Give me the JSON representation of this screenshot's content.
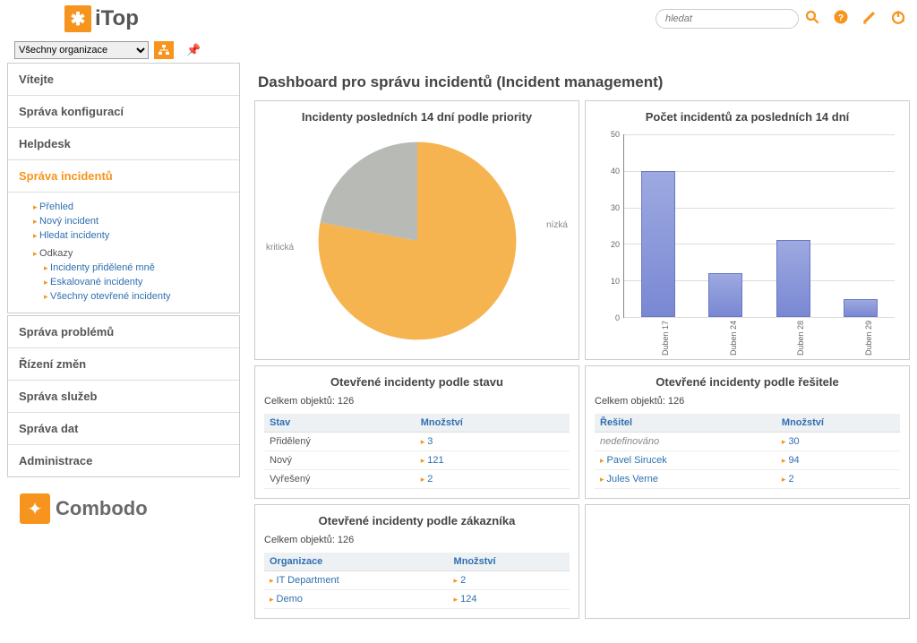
{
  "app": {
    "logo_text": "iTop",
    "footer_logo": "Combodo"
  },
  "header": {
    "search_placeholder": "hledat",
    "org_select": "Všechny organizace"
  },
  "menu": {
    "items": [
      {
        "label": "Vítejte"
      },
      {
        "label": "Správa konfigurací"
      },
      {
        "label": "Helpdesk"
      },
      {
        "label": "Správa incidentů",
        "active": true
      },
      {
        "label": "Správa problémů"
      },
      {
        "label": "Řízení změn"
      },
      {
        "label": "Správa služeb"
      },
      {
        "label": "Správa dat"
      },
      {
        "label": "Administrace"
      }
    ],
    "sub": {
      "group1": [
        "Přehled",
        "Nový incident",
        "Hledat incidenty"
      ],
      "head": "Odkazy",
      "group2": [
        "Incidenty přidělené mně",
        "Eskalované incidenty",
        "Všechny otevřené incidenty"
      ]
    }
  },
  "page": {
    "title": "Dashboard pro správu incidentů (Incident management)"
  },
  "pie": {
    "title": "Incidenty posledních 14 dní podle priority",
    "slices": [
      {
        "label": "kritická",
        "value": 78,
        "color": "#f5b44f"
      },
      {
        "label": "nízká",
        "value": 22,
        "color": "#b8bbb5"
      }
    ],
    "label_color": "#999999",
    "label_fontsize": 10
  },
  "bar": {
    "title": "Počet incidentů za posledních 14 dní",
    "ylim": [
      0,
      50
    ],
    "ytick_step": 10,
    "categories": [
      "Duben 17",
      "Duben 24",
      "Duben 28",
      "Duben 29"
    ],
    "values": [
      40,
      12,
      21,
      5
    ],
    "bar_color_top": "#9da9e0",
    "bar_color_bottom": "#7a88d4",
    "bar_border": "#6a78c4",
    "grid_color": "#dddddd",
    "axis_color": "#888888"
  },
  "status_table": {
    "title": "Otevřené incidenty podle stavu",
    "subtitle": "Celkem objektů: 126",
    "cols": [
      "Stav",
      "Množství"
    ],
    "rows": [
      {
        "label": "Přidělený",
        "val": "3"
      },
      {
        "label": "Nový",
        "val": "121"
      },
      {
        "label": "Vyřešený",
        "val": "2"
      }
    ]
  },
  "agent_table": {
    "title": "Otevřené incidenty podle řešitele",
    "subtitle": "Celkem objektů: 126",
    "cols": [
      "Řešitel",
      "Množství"
    ],
    "rows": [
      {
        "label": "nedefinováno",
        "val": "30",
        "undef": true
      },
      {
        "label": "Pavel Sirucek",
        "val": "94"
      },
      {
        "label": "Jules Verne",
        "val": "2"
      }
    ]
  },
  "customer_table": {
    "title": "Otevřené incidenty podle zákazníka",
    "subtitle": "Celkem objektů: 126",
    "cols": [
      "Organizace",
      "Množství"
    ],
    "rows": [
      {
        "label": "IT Department",
        "val": "2"
      },
      {
        "label": "Demo",
        "val": "124"
      }
    ]
  },
  "colors": {
    "accent": "#f7941d",
    "link": "#2f6fb0"
  }
}
